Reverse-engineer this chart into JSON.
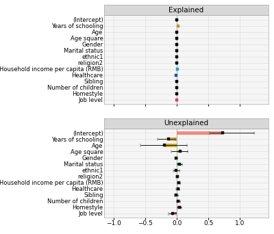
{
  "labels": [
    "(Intercept)",
    "Years of schooling",
    "Age",
    "Age square",
    "Gender",
    "Marital status",
    "ethnic1",
    "religion2",
    "Household income per capita (RMB)",
    "Healthcare",
    "Sibling",
    "Number of children",
    "Homestyle",
    "Job level"
  ],
  "explained": {
    "values": [
      0.0,
      0.018,
      0.0,
      0.0,
      0.0,
      0.0,
      0.0,
      0.0,
      0.004,
      -0.012,
      0.0,
      0.0,
      0.0,
      -0.004
    ],
    "ci_low": [
      -0.001,
      0.01,
      -0.002,
      -0.001,
      -0.001,
      -0.001,
      -0.001,
      -0.001,
      0.001,
      -0.02,
      -0.001,
      -0.001,
      -0.001,
      -0.012
    ],
    "ci_high": [
      0.001,
      0.026,
      0.002,
      0.001,
      0.001,
      0.001,
      0.001,
      0.001,
      0.009,
      -0.004,
      0.001,
      0.001,
      0.001,
      0.004
    ],
    "bar_colors": [
      "#000000",
      "#c8902a",
      "#000000",
      "#000000",
      "#000000",
      "#000000",
      "#000000",
      "#000000",
      "#20a0c0",
      "#2050b0",
      "#000000",
      "#000000",
      "#000000",
      "#d04070"
    ],
    "dot_colors": [
      "#000000",
      "#c8902a",
      "#000000",
      "#000000",
      "#000000",
      "#000000",
      "#000000",
      "#000000",
      "#20a0c0",
      "#2050b0",
      "#000000",
      "#000000",
      "#000000",
      "#d04070"
    ]
  },
  "unexplained": {
    "values": [
      0.72,
      -0.13,
      -0.2,
      0.05,
      -0.01,
      0.04,
      -0.01,
      0.005,
      0.03,
      0.015,
      -0.01,
      0.02,
      0.04,
      -0.07
    ],
    "ci_low": [
      0.52,
      -0.3,
      -0.58,
      -0.09,
      -0.025,
      0.01,
      -0.055,
      -0.015,
      0.01,
      -0.01,
      -0.038,
      -0.005,
      0.01,
      -0.13
    ],
    "ci_high": [
      1.22,
      -0.02,
      0.16,
      0.17,
      0.005,
      0.085,
      0.04,
      0.025,
      0.055,
      0.045,
      0.02,
      0.05,
      0.075,
      -0.01
    ],
    "bar_colors": [
      "#f08070",
      "#e0a020",
      "#c8a000",
      "#a0b820",
      "#383838",
      "#30a030",
      "#707070",
      "#202020",
      "#20b8c0",
      "#2060b0",
      "#8060b0",
      "#d060b8",
      "#e06080",
      "#e02060"
    ],
    "dot_colors": [
      "#222222",
      "#222222",
      "#222222",
      "#222222",
      "#222222",
      "#222222",
      "#222222",
      "#222222",
      "#222222",
      "#222222",
      "#222222",
      "#222222",
      "#222222",
      "#222222"
    ]
  },
  "xlim": [
    -1.15,
    1.45
  ],
  "xticks": [
    -1.0,
    -0.5,
    0.0,
    0.5,
    1.0
  ],
  "panel_color": "#f5f5f5",
  "strip_color": "#d8d8d8",
  "grid_color": "#dddddd",
  "title_fontsize": 7.5,
  "label_fontsize": 6.0,
  "tick_fontsize": 6.5
}
